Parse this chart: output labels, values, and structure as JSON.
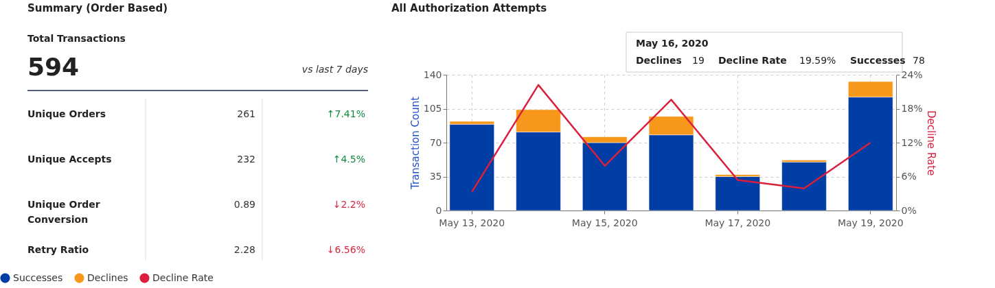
{
  "chart_data": [
    {
      "type": "other",
      "title": "Summary (Order Based)",
      "annotations": [
        "Total Transactions",
        "594",
        "vs last 7 days",
        "Unique Orders",
        "261",
        "↑7.41%",
        "Unique Accepts",
        "232",
        "↑4.5%",
        "Unique Order Conversion",
        "0.89",
        "↓2.2%",
        "Retry Ratio",
        "2.28",
        "↓6.56%"
      ],
      "colors": [
        "#222222",
        "#222222",
        "#333333",
        "#222222",
        "#333333",
        "#118a3e",
        "#222222",
        "#333333",
        "#118a3e",
        "#222222",
        "#333333",
        "#d9263e",
        "#222222",
        "#333333",
        "#d9263e"
      ]
    },
    {
      "type": "bar",
      "title": "All Authorization Attempts",
      "ylabel": "Transaction Count",
      "y2label": "Decline Rate",
      "categories": [
        "May 13, 2020",
        null,
        "May 15, 2020",
        null,
        "May 17, 2020",
        null,
        "May 19, 2020"
      ],
      "stacked": true,
      "series": [
        {
          "name": "Successes",
          "color": "#003da5",
          "values": [
            89,
            81,
            70,
            78,
            35,
            50,
            117
          ]
        },
        {
          "name": "Declines",
          "color": "#f7981d",
          "values": [
            3,
            23,
            6,
            19,
            2,
            2,
            16
          ]
        },
        {
          "name": "Decline Rate",
          "color": "#da1f3d",
          "type": "line",
          "axis": "y2",
          "values": [
            3.3,
            22.2,
            7.9,
            19.59,
            5.4,
            3.9,
            12.0
          ]
        }
      ],
      "ylim": [
        0,
        140
      ],
      "yticks": [
        0,
        35,
        70,
        105,
        140
      ],
      "y2lim": [
        0,
        24
      ],
      "y2ticks": [
        {
          "value": 0,
          "label": "0%"
        },
        {
          "value": 6,
          "label": "6%"
        },
        {
          "value": 12,
          "label": "12%"
        },
        {
          "value": 18,
          "label": "18%"
        },
        {
          "value": 24,
          "label": "24%"
        }
      ],
      "grid": true,
      "legend": "bottom",
      "annotations": [
        "May 16, 2020",
        "Declines",
        "19",
        "Decline Rate",
        "19.59%",
        "Successes",
        "78"
      ]
    }
  ]
}
